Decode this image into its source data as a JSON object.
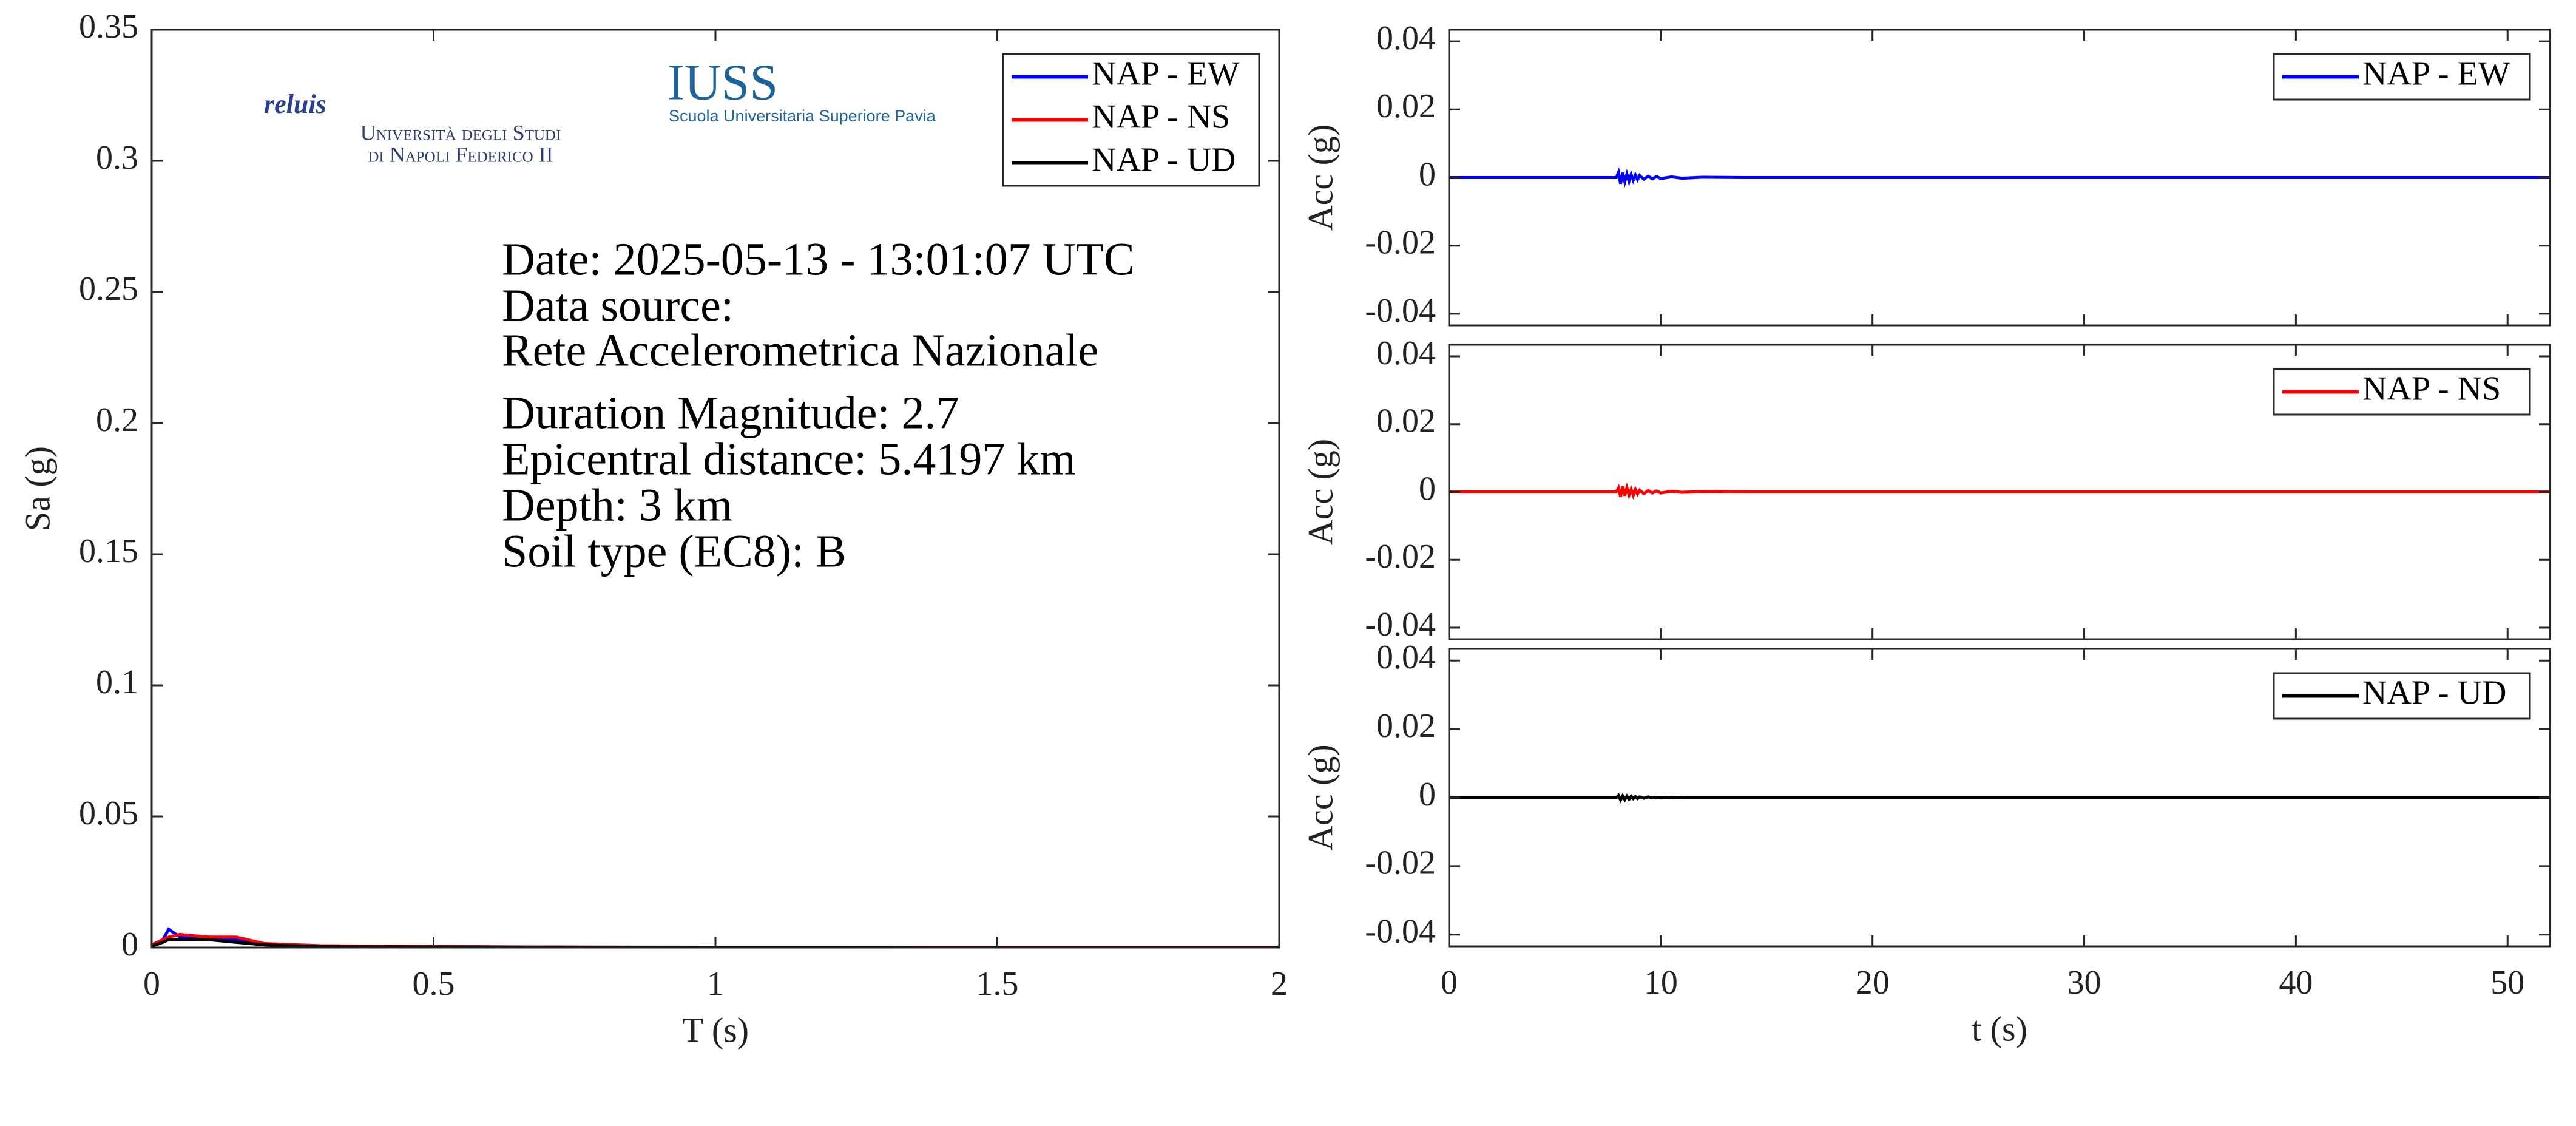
{
  "chart_data": [
    {
      "type": "line",
      "xlabel": "T (s)",
      "ylabel": "Sa (g)",
      "x": [
        0,
        0.02,
        0.03,
        0.05,
        0.1,
        0.15,
        0.2,
        0.3,
        0.5,
        0.7,
        1,
        1.5,
        2
      ],
      "series": [
        {
          "name": "NAP - EW",
          "color": "#0000ff",
          "values": [
            0.001,
            0.003,
            0.007,
            0.004,
            0.004,
            0.003,
            0.001,
            0.0005,
            0.0003,
            0.0002,
            0.0001,
            0.0001,
            0.0001
          ]
        },
        {
          "name": "NAP - NS",
          "color": "#ff0000",
          "values": [
            0.001,
            0.003,
            0.004,
            0.005,
            0.004,
            0.004,
            0.0015,
            0.0007,
            0.0004,
            0.0002,
            0.0001,
            0.0001,
            0.0001
          ]
        },
        {
          "name": "NAP - UD",
          "color": "#000000",
          "values": [
            0.0005,
            0.002,
            0.003,
            0.003,
            0.003,
            0.002,
            0.001,
            0.0004,
            0.0002,
            0.0001,
            0.0001,
            5e-05,
            5e-05
          ]
        }
      ],
      "xlim": [
        0,
        2
      ],
      "xticks": [
        0,
        0.5,
        1,
        1.5,
        2
      ],
      "ylim": [
        0,
        0.35
      ],
      "yticks": [
        0,
        0.05,
        0.1,
        0.15,
        0.2,
        0.25,
        0.3,
        0.35
      ],
      "legend": "upper right",
      "annotations": [
        "Date: 2025-05-13 - 13:01:07 UTC",
        "Data source:",
        "Rete Accelerometrica Nazionale",
        "Duration Magnitude: 2.7",
        "Epicentral distance: 5.4197 km",
        "Depth: 3 km",
        "Soil type (EC8): B"
      ],
      "logos": [
        "reluis",
        "Università degli Studi",
        "di Napoli Federico II",
        "IUSS",
        "Scuola Universitaria Superiore Pavia"
      ]
    },
    {
      "type": "line",
      "ylabel": "Acc (g)",
      "x": [
        0,
        7.9,
        8.0,
        8.1,
        8.2,
        8.3,
        8.4,
        8.5,
        8.6,
        8.7,
        8.8,
        8.9,
        9.0,
        9.2,
        9.4,
        9.6,
        9.8,
        10.0,
        10.5,
        11,
        12,
        14,
        52
      ],
      "series": [
        {
          "name": "NAP - EW",
          "color": "#0000ff",
          "values": [
            0,
            0,
            0.0015,
            -0.0018,
            0.0014,
            -0.0012,
            0.001,
            -0.0011,
            0.0009,
            -0.0008,
            0.0007,
            -0.0006,
            0.0006,
            -0.0005,
            0.0004,
            -0.0004,
            0.0003,
            -0.0003,
            0.0002,
            -0.0002,
            0.0001,
            0,
            0
          ]
        }
      ],
      "xlim": [
        0,
        52
      ],
      "ylim": [
        -0.0434,
        0.0434
      ],
      "yticks": [
        -0.04,
        -0.02,
        0,
        0.02,
        0.04
      ],
      "legend": "upper right"
    },
    {
      "type": "line",
      "ylabel": "Acc (g)",
      "x": [
        0,
        7.9,
        8.0,
        8.1,
        8.2,
        8.3,
        8.4,
        8.5,
        8.6,
        8.7,
        8.8,
        8.9,
        9.0,
        9.2,
        9.4,
        9.6,
        9.8,
        10.0,
        10.5,
        11,
        12,
        14,
        52
      ],
      "series": [
        {
          "name": "NAP - NS",
          "color": "#ff0000",
          "values": [
            0,
            0,
            0.0012,
            -0.0014,
            0.0016,
            -0.0011,
            0.0012,
            -0.0009,
            0.0008,
            -0.001,
            0.0007,
            -0.0006,
            0.0005,
            -0.0005,
            0.0004,
            -0.0003,
            0.0003,
            -0.0003,
            0.0002,
            -0.0001,
            0.0001,
            0,
            0
          ]
        }
      ],
      "xlim": [
        0,
        52
      ],
      "ylim": [
        -0.0434,
        0.0434
      ],
      "yticks": [
        -0.04,
        -0.02,
        0,
        0.02,
        0.04
      ],
      "legend": "upper right"
    },
    {
      "type": "line",
      "xlabel": "t (s)",
      "ylabel": "Acc (g)",
      "x": [
        0,
        7.9,
        8.0,
        8.1,
        8.2,
        8.3,
        8.4,
        8.5,
        8.6,
        8.7,
        8.8,
        8.9,
        9.0,
        9.2,
        9.4,
        9.6,
        9.8,
        10.0,
        10.5,
        11,
        12,
        14,
        52
      ],
      "series": [
        {
          "name": "NAP - UD",
          "color": "#000000",
          "values": [
            0,
            0,
            0.0006,
            -0.0007,
            0.0005,
            -0.0006,
            0.0004,
            -0.0005,
            0.0004,
            -0.0003,
            0.0003,
            -0.0003,
            0.0002,
            -0.0002,
            0.0002,
            -0.0001,
            0.0001,
            -0.0001,
            0.0001,
            0,
            0,
            0,
            0
          ]
        }
      ],
      "xlim": [
        0,
        52
      ],
      "xticks": [
        0,
        10,
        20,
        30,
        40,
        50
      ],
      "ylim": [
        -0.0434,
        0.0434
      ],
      "yticks": [
        -0.04,
        -0.02,
        0,
        0.02,
        0.04
      ],
      "legend": "upper right"
    }
  ]
}
